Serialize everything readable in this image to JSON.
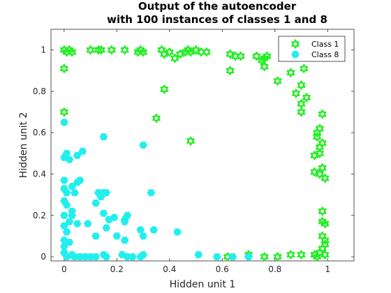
{
  "chart_data": {
    "type": "scatter",
    "title": [
      "Output of the autoencoder",
      "with 100 instances of classes 1 and 8"
    ],
    "xlabel": "Hidden unit 1",
    "ylabel": "Hidden unit 2",
    "xlim": [
      -0.05,
      1.1
    ],
    "ylim": [
      -0.02,
      1.1
    ],
    "xticks": [
      "0",
      "0.2",
      "0.4",
      "0.6",
      "0.8",
      "1"
    ],
    "yticks": [
      "0",
      "0.2",
      "0.4",
      "0.6",
      "0.8",
      "1"
    ],
    "xtick_values": [
      0,
      0.2,
      0.4,
      0.6,
      0.8,
      1
    ],
    "ytick_values": [
      0,
      0.2,
      0.4,
      0.6,
      0.8,
      1
    ],
    "grid": false,
    "legend_position": "top-right",
    "series": [
      {
        "name": "Class 1",
        "color": "#22ee22",
        "marker": "hexagram",
        "points": [
          [
            0,
            1
          ],
          [
            0.01,
            0.99
          ],
          [
            0.02,
            1
          ],
          [
            0.03,
            0.99
          ],
          [
            0,
            0.91
          ],
          [
            0,
            0.7
          ],
          [
            0.1,
            1
          ],
          [
            0.13,
            1
          ],
          [
            0.14,
            1
          ],
          [
            0.18,
            1
          ],
          [
            0.23,
            1
          ],
          [
            0.28,
            0.99
          ],
          [
            0.29,
            1
          ],
          [
            0.3,
            0.99
          ],
          [
            0.37,
            1
          ],
          [
            0.38,
            0.98
          ],
          [
            0.4,
            0.99
          ],
          [
            0.42,
            0.96
          ],
          [
            0.44,
            0.98
          ],
          [
            0.46,
            0.99
          ],
          [
            0.47,
            1
          ],
          [
            0.48,
            0.99
          ],
          [
            0.5,
            1
          ],
          [
            0.52,
            0.99
          ],
          [
            0.54,
            0.99
          ],
          [
            0.63,
            0.98
          ],
          [
            0.65,
            0.97
          ],
          [
            0.67,
            0.97
          ],
          [
            0.73,
            0.97
          ],
          [
            0.75,
            0.95
          ],
          [
            0.76,
            0.96
          ],
          [
            0.77,
            0.97
          ],
          [
            0.63,
            0.9
          ],
          [
            0.76,
            0.92
          ],
          [
            0.38,
            0.81
          ],
          [
            0.35,
            0.67
          ],
          [
            0.48,
            0.56
          ],
          [
            0.81,
            0.85
          ],
          [
            0.86,
            0.89
          ],
          [
            0.91,
            0.91
          ],
          [
            0.88,
            0.79
          ],
          [
            0.9,
            0.83
          ],
          [
            0.92,
            0.77
          ],
          [
            0.9,
            0.74
          ],
          [
            0.9,
            0.7
          ],
          [
            0.98,
            0.69
          ],
          [
            0.96,
            0.6
          ],
          [
            0.97,
            0.62
          ],
          [
            0.96,
            0.58
          ],
          [
            0.97,
            0.53
          ],
          [
            0.98,
            0.55
          ],
          [
            0.95,
            0.49
          ],
          [
            0.97,
            0.5
          ],
          [
            0.98,
            0.43
          ],
          [
            0.95,
            0.41
          ],
          [
            0.97,
            0.4
          ],
          [
            0.99,
            0.38
          ],
          [
            0.98,
            0.22
          ],
          [
            0.98,
            0.17
          ],
          [
            0.99,
            0.16
          ],
          [
            0.98,
            0.1
          ],
          [
            0.99,
            0.08
          ],
          [
            0.99,
            0.06
          ],
          [
            0.98,
            0.04
          ],
          [
            0.97,
            0.02
          ],
          [
            0.99,
            0.01
          ],
          [
            0.96,
            0
          ],
          [
            0.95,
            0.01
          ],
          [
            0.9,
            0.01
          ],
          [
            0.86,
            0.01
          ],
          [
            0.81,
            0
          ],
          [
            0.76,
            0
          ],
          [
            0.7,
            0.01
          ],
          [
            0.62,
            0
          ]
        ]
      },
      {
        "name": "Class 8",
        "color": "#22eeee",
        "marker": "hexagon",
        "points": [
          [
            0,
            0.65
          ],
          [
            0,
            0.48
          ],
          [
            0.01,
            0.5
          ],
          [
            0.02,
            0.47
          ],
          [
            0.05,
            0.49
          ],
          [
            0.07,
            0.51
          ],
          [
            0,
            0.37
          ],
          [
            0,
            0.33
          ],
          [
            0.01,
            0.31
          ],
          [
            0.03,
            0.34
          ],
          [
            0.04,
            0.31
          ],
          [
            0.05,
            0.36
          ],
          [
            0.06,
            0.37
          ],
          [
            0,
            0.27
          ],
          [
            0.01,
            0.25
          ],
          [
            0.03,
            0.22
          ],
          [
            0.03,
            0.2
          ],
          [
            0.02,
            0.17
          ],
          [
            0,
            0.2
          ],
          [
            0,
            0.15
          ],
          [
            0.01,
            0.12
          ],
          [
            0,
            0.08
          ],
          [
            0.02,
            0.07
          ],
          [
            0,
            0.05
          ],
          [
            0,
            0.02
          ],
          [
            0.01,
            0
          ],
          [
            0.03,
            0.01
          ],
          [
            0.04,
            0
          ],
          [
            0.06,
            0
          ],
          [
            0.08,
            0
          ],
          [
            0.1,
            0
          ],
          [
            0.12,
            0
          ],
          [
            0.15,
            0.01
          ],
          [
            0.16,
            0
          ],
          [
            0.22,
            0.01
          ],
          [
            0.24,
            0
          ],
          [
            0.26,
            0
          ],
          [
            0.29,
            0
          ],
          [
            0.3,
            0.01
          ],
          [
            0.05,
            0.16
          ],
          [
            0.09,
            0.16
          ],
          [
            0.12,
            0.26
          ],
          [
            0.13,
            0.31
          ],
          [
            0.14,
            0.29
          ],
          [
            0.15,
            0.31
          ],
          [
            0.16,
            0.31
          ],
          [
            0.15,
            0.21
          ],
          [
            0.17,
            0.18
          ],
          [
            0.19,
            0.19
          ],
          [
            0.16,
            0.14
          ],
          [
            0.2,
            0.1
          ],
          [
            0.12,
            0.1
          ],
          [
            0.23,
            0.17
          ],
          [
            0.23,
            0.18
          ],
          [
            0.24,
            0.2
          ],
          [
            0.23,
            0.08
          ],
          [
            0.29,
            0.13
          ],
          [
            0.3,
            0.1
          ],
          [
            0.34,
            0.13
          ],
          [
            0.33,
            0.31
          ],
          [
            0.3,
            0.54
          ],
          [
            0.15,
            0.58
          ],
          [
            0.43,
            0.12
          ],
          [
            0.51,
            0.01
          ],
          [
            0.58,
            0
          ],
          [
            0.64,
            0
          ],
          [
            0.7,
            0
          ]
        ]
      }
    ]
  }
}
